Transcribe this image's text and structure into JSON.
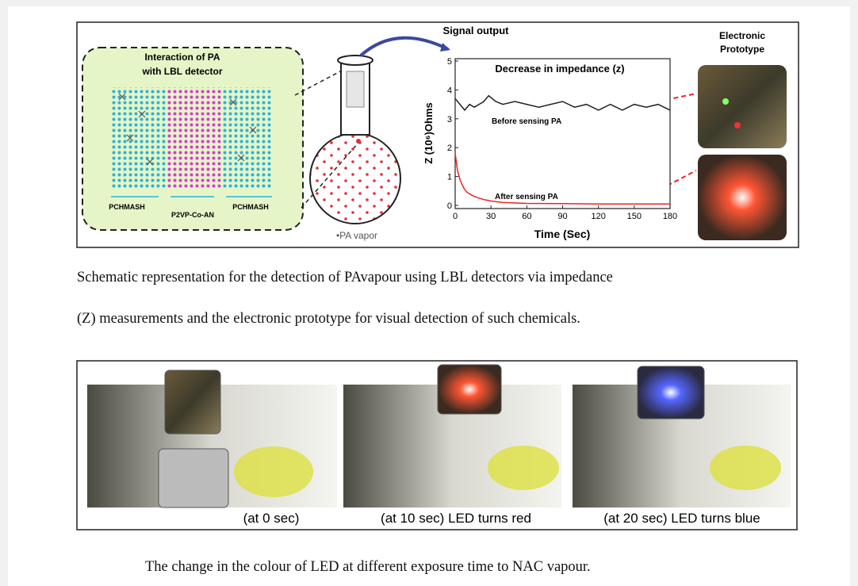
{
  "figure1": {
    "inset_title_1": "Interaction of PA",
    "inset_title_2": "with LBL detector",
    "layer_left": "PCHMASH",
    "layer_middle": "P2VP-Co-AN",
    "layer_right": "PCHMASH",
    "vapor_label": "•PA vapor",
    "signal_label": "Signal output",
    "prototype_label_1": "Electronic",
    "prototype_label_2": "Prototype",
    "chart": {
      "type": "line",
      "title": "Decrease in impedance (z)",
      "x_label": "Time (Sec)",
      "y_label": "Z (10⁶)Ohms",
      "xlim": [
        0,
        180
      ],
      "ylim": [
        0,
        5
      ],
      "xticks": [
        0,
        30,
        60,
        90,
        120,
        150,
        180
      ],
      "yticks": [
        0,
        1,
        2,
        3,
        4,
        5
      ],
      "annotations": [
        "Before sensing PA",
        "After sensing PA"
      ],
      "series": [
        {
          "name": "Before sensing PA",
          "color": "#222222",
          "x": [
            0,
            4,
            8,
            12,
            16,
            20,
            24,
            28,
            34,
            40,
            50,
            60,
            70,
            80,
            90,
            100,
            110,
            120,
            130,
            140,
            150,
            160,
            170,
            180
          ],
          "values": [
            3.7,
            3.5,
            3.3,
            3.5,
            3.4,
            3.5,
            3.6,
            3.8,
            3.6,
            3.5,
            3.6,
            3.5,
            3.4,
            3.5,
            3.6,
            3.4,
            3.5,
            3.3,
            3.5,
            3.3,
            3.5,
            3.4,
            3.5,
            3.3
          ]
        },
        {
          "name": "After sensing PA",
          "color": "#ee2222",
          "x": [
            0,
            2,
            4,
            6,
            8,
            10,
            14,
            18,
            24,
            30,
            40,
            60,
            90,
            120,
            150,
            180
          ],
          "values": [
            1.8,
            1.2,
            0.9,
            0.7,
            0.55,
            0.45,
            0.35,
            0.28,
            0.2,
            0.15,
            0.1,
            0.07,
            0.06,
            0.05,
            0.05,
            0.05
          ]
        }
      ]
    }
  },
  "caption1_line1": "Schematic representation for the detection of PAvapour using LBL detectors via impedance",
  "caption1_line2": "(Z) measurements and the electronic prototype for visual detection of such chemicals.",
  "figure2": {
    "panel_labels": [
      "(at 0 sec)",
      "(at 10 sec) LED turns red",
      "(at 20 sec) LED turns blue"
    ]
  },
  "caption2": "The change in the colour of LED at different exposure time to NAC vapour."
}
